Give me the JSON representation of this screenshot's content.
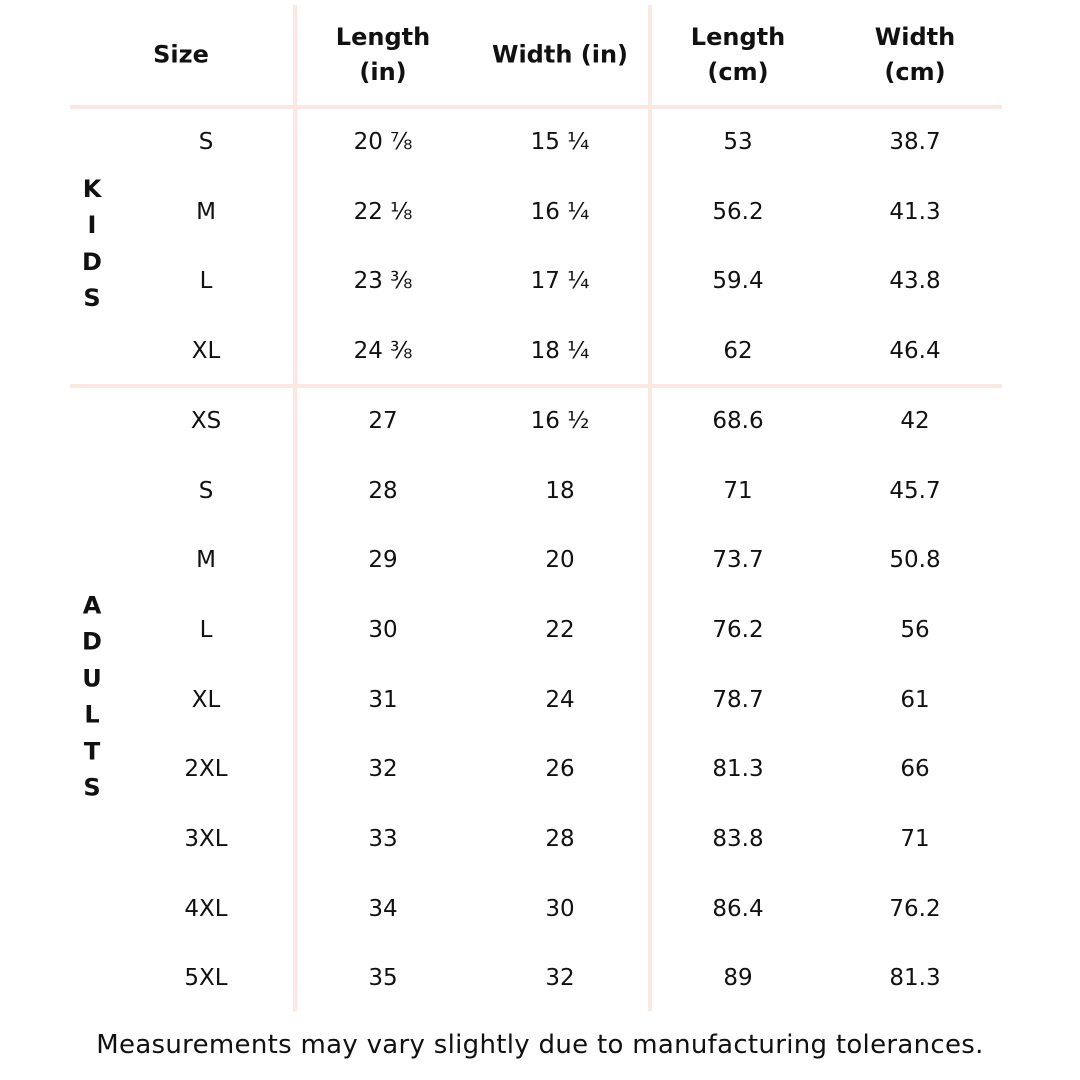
{
  "table": {
    "columns": [
      "Size",
      "Length (in)",
      "Width (in)",
      "Length (cm)",
      "Width (cm)"
    ],
    "groups": [
      {
        "label": "KIDS",
        "rows": [
          [
            "S",
            "20 ⅞",
            "15 ¼",
            53,
            38.7
          ],
          [
            "M",
            "22 ⅛",
            "16 ¼",
            56.2,
            41.3
          ],
          [
            "L",
            "23 ⅜",
            "17 ¼",
            59.4,
            43.8
          ],
          [
            "XL",
            "24 ⅜",
            "18 ¼",
            62,
            46.4
          ]
        ]
      },
      {
        "label": "ADULTS",
        "rows": [
          [
            "XS",
            27,
            "16 ½",
            68.6,
            42
          ],
          [
            "S",
            28,
            18,
            71,
            45.7
          ],
          [
            "M",
            29,
            20,
            73.7,
            50.8
          ],
          [
            "L",
            30,
            22,
            76.2,
            56
          ],
          [
            "XL",
            31,
            24,
            78.7,
            61
          ],
          [
            "2XL",
            32,
            26,
            81.3,
            66
          ],
          [
            "3XL",
            33,
            28,
            83.8,
            71
          ],
          [
            "4XL",
            34,
            30,
            86.4,
            76.2
          ],
          [
            "5XL",
            35,
            32,
            89,
            81.3
          ]
        ]
      }
    ]
  },
  "footer": "Measurements may vary slightly due to manufacturing tolerances."
}
